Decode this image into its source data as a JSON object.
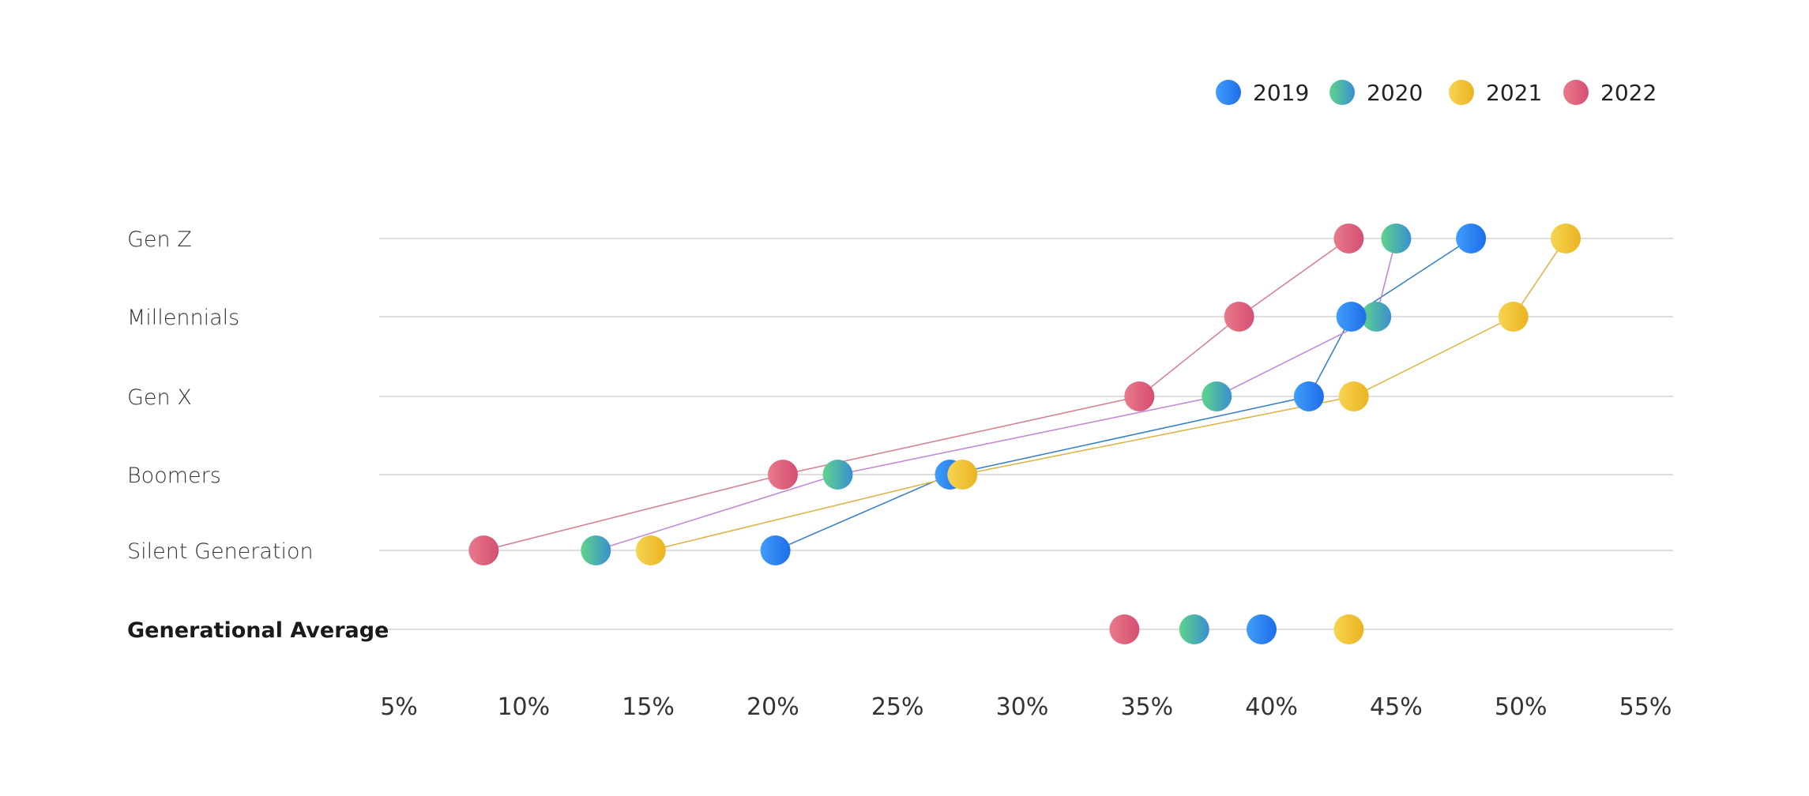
{
  "chart_data": {
    "type": "scatter",
    "subtype": "dot-plot",
    "categories": [
      "Gen Z",
      "Millennials",
      "Gen X",
      "Boomers",
      "Silent Generation",
      "Generational Average"
    ],
    "category_bold": [
      false,
      false,
      false,
      false,
      false,
      true
    ],
    "x_ticks": [
      "5%",
      "10%",
      "15%",
      "20%",
      "25%",
      "30%",
      "35%",
      "40%",
      "45%",
      "50%",
      "55%"
    ],
    "xlim": [
      5,
      55
    ],
    "x_unit": "%",
    "legend_position": "top-right",
    "grid": "horizontal",
    "series": [
      {
        "name": "2019",
        "color_start": "#3f9dfc",
        "color_end": "#1f6de8",
        "line_color": "#3b82c4",
        "values": [
          48,
          43.2,
          41.5,
          27.1,
          20.1,
          39.6
        ],
        "connected": [
          true,
          true,
          true,
          true,
          true,
          false
        ]
      },
      {
        "name": "2020",
        "color_start": "#5fd48a",
        "color_end": "#3a8fd0",
        "line_color": "#c08ad6",
        "values": [
          45,
          44.2,
          37.8,
          22.6,
          12.9,
          36.9
        ],
        "connected": [
          true,
          true,
          true,
          true,
          true,
          false
        ]
      },
      {
        "name": "2021",
        "color_start": "#f7d451",
        "color_end": "#e9b422",
        "line_color": "#e0b44a",
        "values": [
          51.8,
          49.7,
          43.3,
          27.6,
          15.1,
          43.1
        ],
        "connected": [
          true,
          true,
          true,
          true,
          true,
          false
        ]
      },
      {
        "name": "2022",
        "color_start": "#e97a8a",
        "color_end": "#d44e72",
        "line_color": "#d48490",
        "values": [
          43.1,
          38.7,
          34.7,
          20.4,
          8.4,
          34.1
        ],
        "connected": [
          true,
          true,
          true,
          true,
          true,
          false
        ]
      }
    ]
  }
}
